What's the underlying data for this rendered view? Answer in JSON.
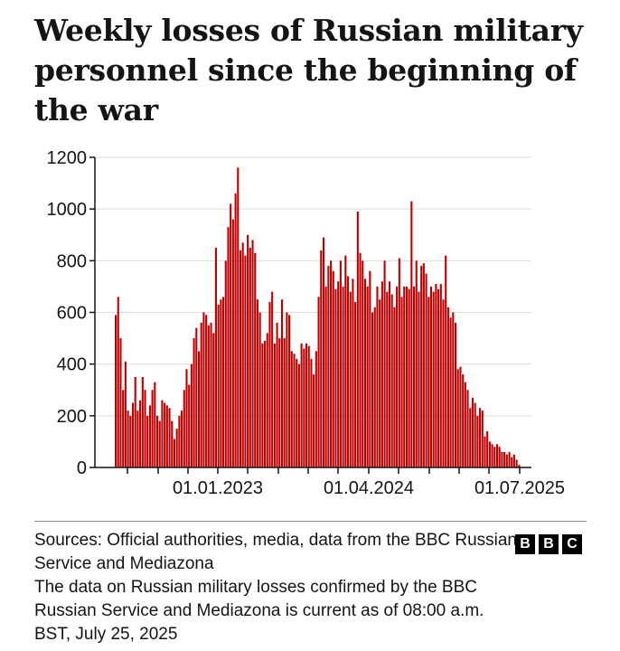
{
  "chart_data": {
    "type": "bar",
    "title": "Weekly losses of Russian military personnel since the beginning of the war",
    "xlabel": "",
    "ylabel": "",
    "ylim": [
      0,
      1200
    ],
    "yticks": [
      0,
      200,
      400,
      600,
      800,
      1000,
      1200
    ],
    "xtick_labels": [
      "01.01.2023",
      "01.04.2024",
      "01.07.2025"
    ],
    "grid": true,
    "series": [
      {
        "color": "#c00000",
        "values": [
          590,
          660,
          500,
          300,
          410,
          220,
          200,
          250,
          350,
          220,
          260,
          350,
          300,
          200,
          240,
          300,
          330,
          200,
          180,
          260,
          250,
          240,
          230,
          180,
          110,
          150,
          200,
          220,
          300,
          380,
          320,
          400,
          500,
          540,
          450,
          560,
          600,
          590,
          550,
          560,
          520,
          850,
          630,
          650,
          660,
          800,
          930,
          1020,
          960,
          1060,
          1160,
          840,
          870,
          820,
          900,
          850,
          880,
          830,
          650,
          600,
          480,
          490,
          520,
          640,
          680,
          480,
          560,
          500,
          650,
          500,
          600,
          590,
          450,
          440,
          420,
          400,
          480,
          460,
          480,
          470,
          420,
          360,
          450,
          660,
          840,
          890,
          700,
          780,
          800,
          760,
          690,
          720,
          800,
          700,
          820,
          740,
          680,
          730,
          640,
          990,
          830,
          800,
          730,
          700,
          760,
          600,
          620,
          700,
          650,
          720,
          800,
          680,
          720,
          670,
          620,
          700,
          810,
          660,
          700,
          700,
          690,
          1030,
          700,
          800,
          680,
          780,
          790,
          750,
          660,
          700,
          680,
          710,
          690,
          710,
          650,
          820,
          620,
          580,
          600,
          560,
          380,
          390,
          360,
          330,
          300,
          230,
          270,
          250,
          200,
          230,
          220,
          120,
          140,
          100,
          90,
          80,
          90,
          80,
          60,
          60,
          50,
          60,
          40,
          50,
          30,
          10
        ]
      }
    ]
  },
  "footer": {
    "line1": "Sources: Official authorities, media, data from the BBC Russian Service and Mediazona",
    "line2": "The data on Russian military losses confirmed by the BBC Russian Service and Mediazona is current as of 08:00 a.m. BST, July 25, 2025"
  },
  "logo": {
    "letters": [
      "B",
      "B",
      "C"
    ]
  }
}
